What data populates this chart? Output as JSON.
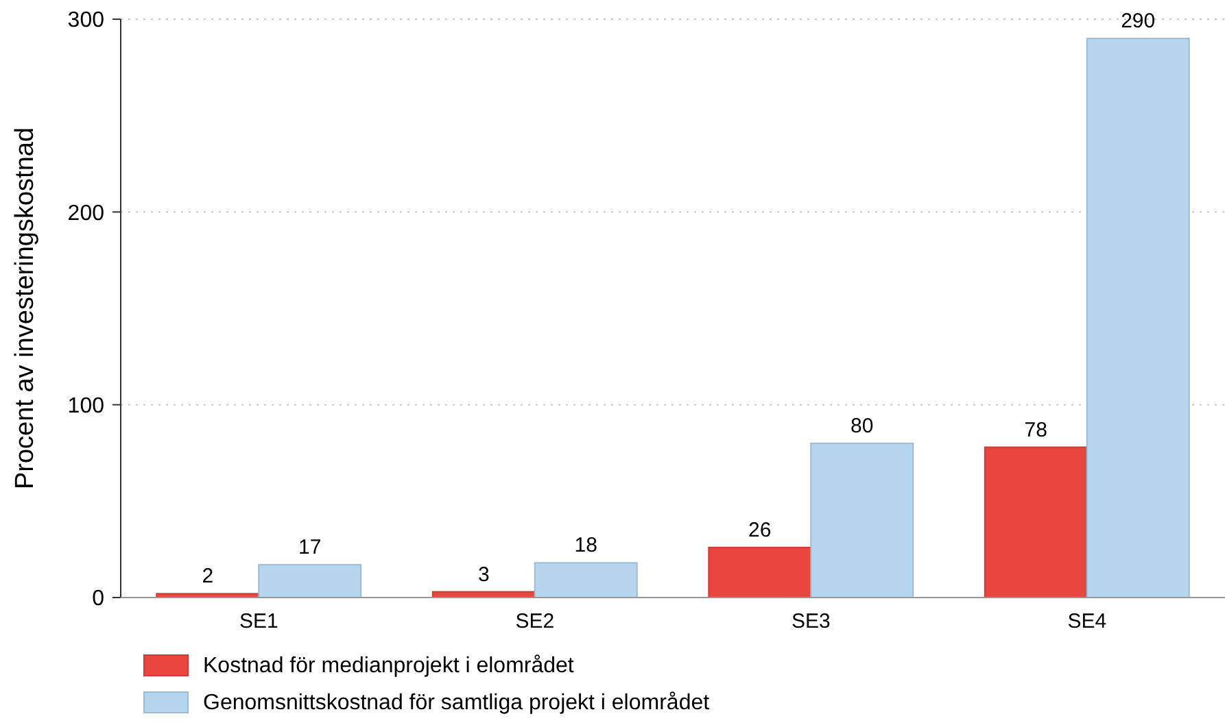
{
  "chart_data": {
    "type": "bar",
    "ylabel": "Procent av investeringskostnad",
    "categories": [
      "SE1",
      "SE2",
      "SE3",
      "SE4"
    ],
    "series": [
      {
        "name": "Kostnad för medianprojekt i elområdet",
        "color": "#e8463e",
        "values": [
          2,
          3,
          26,
          78
        ]
      },
      {
        "name": "Genomsnittskostnad för samtliga projekt i elområdet",
        "color": "#b6d6f0",
        "values": [
          17,
          18,
          80,
          290
        ]
      }
    ],
    "ylim": [
      0,
      300
    ],
    "yticks": [
      0,
      100,
      200,
      300
    ],
    "grid": "y",
    "legend": "bottom",
    "data_labels": true
  }
}
